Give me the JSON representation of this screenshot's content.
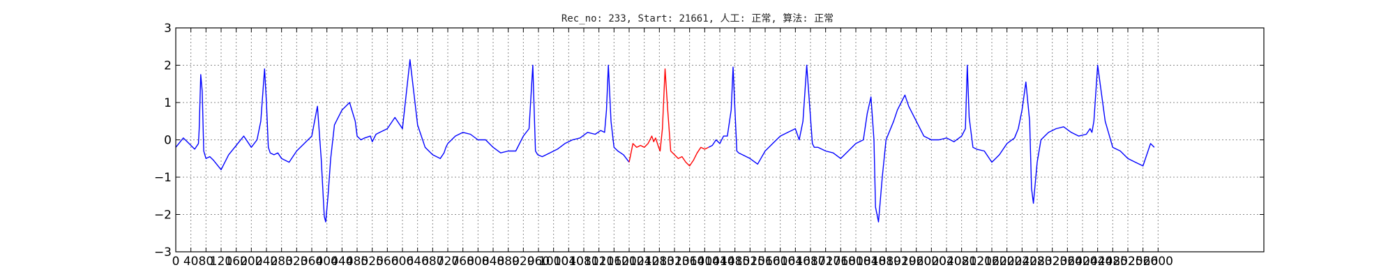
{
  "chart_data": {
    "type": "line",
    "title": "Rec_no: 233, Start: 21661, 人工: 正常, 算法: 正常",
    "xlabel": "",
    "ylabel": "",
    "xlim": [
      0,
      2880
    ],
    "ylim": [
      -3,
      3
    ],
    "grid": true,
    "y_ticks": [
      -3,
      -2,
      -1,
      0,
      1,
      2,
      3
    ],
    "y_tick_labels": [
      "−3",
      "−2",
      "−1",
      "0",
      "1",
      "2",
      "3"
    ],
    "x_ticks": [
      0,
      40,
      80,
      120,
      160,
      200,
      240,
      280,
      320,
      360,
      400,
      440,
      480,
      520,
      560,
      600,
      640,
      680,
      720,
      760,
      800,
      840,
      880,
      920,
      960,
      1000,
      1040,
      1080,
      1120,
      1160,
      1200,
      1240,
      1280,
      1320,
      1360,
      1400,
      1440,
      1480,
      1520,
      1560,
      1600,
      1640,
      1680,
      1720,
      1760,
      1800,
      1840,
      1880,
      1920,
      1960,
      2000,
      2040,
      2080,
      2120,
      2160,
      2200,
      2240,
      2280,
      2320,
      2360,
      2400,
      2440,
      2480,
      2520,
      2560,
      2600
    ],
    "series": [
      {
        "color": "#0000ff",
        "x": [
          0,
          20,
          35,
          50,
          60,
          62,
          66,
          70,
          74,
          80,
          90,
          100,
          120,
          140,
          160,
          180,
          200,
          215,
          225,
          235,
          240,
          245,
          250,
          260,
          270,
          280,
          300,
          320,
          340,
          360,
          375,
          385,
          393,
          397,
          403,
          410,
          420,
          440,
          460,
          475,
          480,
          490,
          500,
          515,
          520,
          530,
          540,
          560,
          580,
          600,
          620,
          640,
          660,
          680,
          700,
          710,
          715,
          720,
          730,
          740,
          760,
          780,
          800,
          820,
          840,
          860,
          880,
          900,
          920,
          935,
          945,
          948,
          952,
          958,
          970,
          990,
          1010,
          1030,
          1050,
          1070,
          1090,
          1110,
          1125,
          1135,
          1140,
          1145,
          1152,
          1160,
          1170,
          1185,
          1200
        ],
        "y": [
          -0.2,
          0.05,
          -0.1,
          -0.25,
          -0.1,
          0.3,
          1.75,
          1.3,
          -0.3,
          -0.5,
          -0.45,
          -0.55,
          -0.8,
          -0.4,
          -0.15,
          0.1,
          -0.2,
          0.0,
          0.5,
          1.9,
          1.0,
          -0.2,
          -0.35,
          -0.4,
          -0.35,
          -0.5,
          -0.6,
          -0.3,
          -0.1,
          0.1,
          0.9,
          -0.5,
          -2.05,
          -2.2,
          -1.5,
          -0.5,
          0.4,
          0.8,
          1.0,
          0.5,
          0.1,
          0.0,
          0.05,
          0.1,
          -0.05,
          0.15,
          0.2,
          0.3,
          0.6,
          0.3,
          2.15,
          0.4,
          -0.2,
          -0.4,
          -0.5,
          -0.35,
          -0.2,
          -0.1,
          0.0,
          0.1,
          0.2,
          0.15,
          0.0,
          0.0,
          -0.2,
          -0.35,
          -0.3,
          -0.3,
          0.1,
          0.3,
          2.0,
          1.0,
          -0.3,
          -0.4,
          -0.45,
          -0.35,
          -0.25,
          -0.1,
          0.0,
          0.05,
          0.2,
          0.15,
          0.25,
          0.2,
          0.8,
          2.0,
          0.5,
          -0.2,
          -0.3,
          -0.4,
          -0.6
        ]
      },
      {
        "color": "#ff0000",
        "x": [
          1200,
          1210,
          1220,
          1230,
          1240,
          1250,
          1260,
          1265,
          1270,
          1278,
          1282,
          1288,
          1295,
          1302,
          1310,
          1320,
          1330,
          1340,
          1350,
          1360,
          1370,
          1380,
          1390,
          1400,
          1410
        ],
        "y": [
          -0.6,
          -0.1,
          -0.2,
          -0.15,
          -0.2,
          -0.1,
          0.1,
          -0.05,
          0.05,
          -0.2,
          -0.3,
          0.3,
          1.9,
          0.8,
          -0.3,
          -0.4,
          -0.5,
          -0.45,
          -0.6,
          -0.7,
          -0.55,
          -0.35,
          -0.2,
          -0.25,
          -0.2
        ]
      },
      {
        "color": "#0000ff",
        "x": [
          1410,
          1420,
          1430,
          1440,
          1450,
          1460,
          1470,
          1475,
          1480,
          1485,
          1490,
          1500,
          1520,
          1540,
          1560,
          1580,
          1600,
          1620,
          1640,
          1650,
          1660,
          1670,
          1680,
          1685,
          1690,
          1700,
          1720,
          1740,
          1760,
          1780,
          1800,
          1820,
          1830,
          1840,
          1848,
          1852,
          1860,
          1870,
          1880,
          1900,
          1910,
          1920,
          1930,
          1940,
          1960,
          1980,
          2000,
          2020,
          2040,
          2060,
          2080,
          2090,
          2095,
          2100,
          2110,
          2120,
          2140,
          2160,
          2180,
          2200,
          2220,
          2230,
          2240,
          2250,
          2260,
          2265,
          2270,
          2280,
          2290,
          2300,
          2310,
          2330,
          2350,
          2370,
          2390,
          2410,
          2420,
          2425,
          2430,
          2440,
          2460,
          2480,
          2500,
          2510,
          2520,
          2540,
          2560,
          2570,
          2580,
          2590
        ],
        "y": [
          -0.2,
          -0.15,
          0.0,
          -0.1,
          0.1,
          0.1,
          0.8,
          1.95,
          0.8,
          -0.3,
          -0.35,
          -0.4,
          -0.5,
          -0.65,
          -0.3,
          -0.1,
          0.1,
          0.2,
          0.3,
          0.0,
          0.5,
          2.0,
          0.6,
          -0.1,
          -0.2,
          -0.2,
          -0.3,
          -0.35,
          -0.5,
          -0.3,
          -0.1,
          0.0,
          0.7,
          1.15,
          0.0,
          -1.8,
          -2.2,
          -1.0,
          0.0,
          0.5,
          0.8,
          1.0,
          1.2,
          0.9,
          0.5,
          0.1,
          0.0,
          0.0,
          0.05,
          -0.05,
          0.1,
          0.3,
          2.0,
          0.6,
          -0.2,
          -0.25,
          -0.3,
          -0.6,
          -0.4,
          -0.1,
          0.05,
          0.3,
          0.8,
          1.55,
          0.5,
          -1.3,
          -1.7,
          -0.6,
          0.0,
          0.1,
          0.2,
          0.3,
          0.35,
          0.2,
          0.1,
          0.15,
          0.3,
          0.2,
          0.5,
          2.0,
          0.5,
          -0.2,
          -0.3,
          -0.4,
          -0.5,
          -0.6,
          -0.7,
          -0.4,
          -0.1,
          -0.2
        ]
      }
    ]
  }
}
